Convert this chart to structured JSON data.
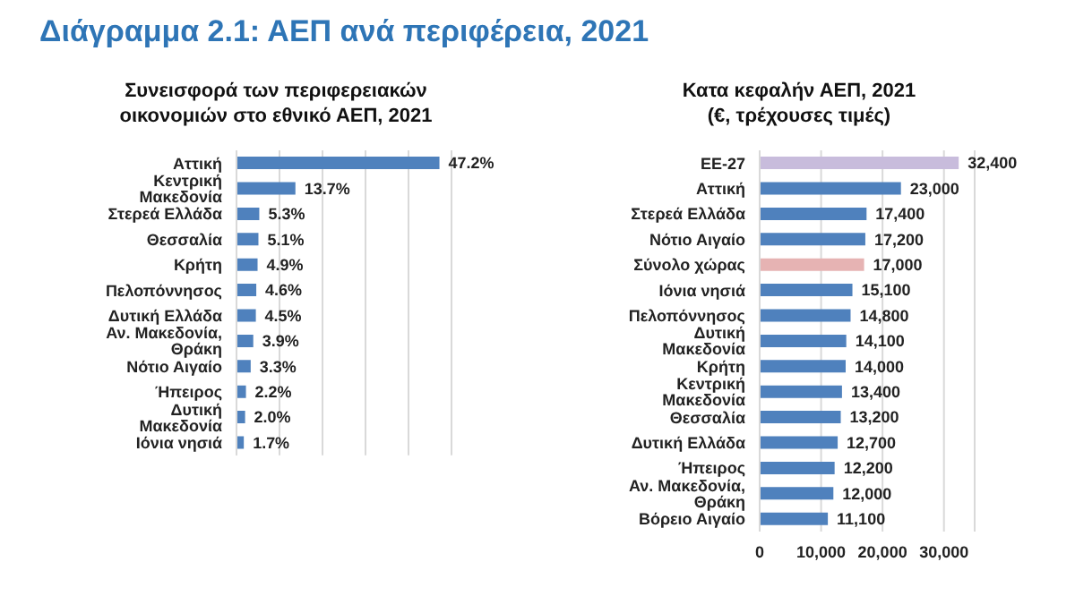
{
  "chart_data": [
    {
      "type": "bar",
      "orientation": "horizontal",
      "title": "Διάγραμμα 2.1: ΑΕΠ ανά περιφέρεια, 2021",
      "subtitle": "Συνεισφορά των περιφερειακών\nοικονομιών στο εθνικό ΑΕΠ, 2021",
      "categories": [
        "Αττική",
        "Κεντρική Μακεδονία",
        "Στερεά Ελλάδα",
        "Θεσσαλία",
        "Κρήτη",
        "Πελοπόννησος",
        "Δυτική Ελλάδα",
        "Αν. Μακεδονία, Θράκη",
        "Νότιο Αιγαίο",
        "Ήπειρος",
        "Δυτική Μακεδονία",
        "Ιόνια νησιά"
      ],
      "values": [
        47.2,
        13.7,
        5.3,
        5.1,
        4.9,
        4.6,
        4.5,
        3.9,
        3.3,
        2.2,
        2.0,
        1.7
      ],
      "value_labels": [
        "47.2%",
        "13.7%",
        "5.3%",
        "5.1%",
        "4.9%",
        "4.6%",
        "4.5%",
        "3.9%",
        "3.3%",
        "2.2%",
        "2.0%",
        "1.7%"
      ],
      "color": "#4f81bd",
      "xlim": [
        0,
        50
      ],
      "xticks": [
        {
          "value": 0,
          "label": null
        },
        {
          "value": 10,
          "label": null
        },
        {
          "value": 20,
          "label": null
        },
        {
          "value": 30,
          "label": null
        },
        {
          "value": 40,
          "label": null
        },
        {
          "value": 50,
          "label": null
        }
      ],
      "grid": "x",
      "tick_labels": "y"
    },
    {
      "type": "bar",
      "orientation": "horizontal",
      "title": "Κατα κεφαλήν ΑΕΠ, 2021\n(€, τρέχουσες τιμές)",
      "categories": [
        "ΕΕ-27",
        "Αττική",
        "Στερεά Ελλάδα",
        "Νότιο Αιγαίο",
        "Σύνολο χώρας",
        "Ιόνια νησιά",
        "Πελοπόννησος",
        "Δυτική Μακεδονία",
        "Κρήτη",
        "Κεντρική Μακεδονία",
        "Θεσσαλία",
        "Δυτική Ελλάδα",
        "Ήπειρος",
        "Αν. Μακεδονία, Θράκη",
        "Βόρειο Αιγαίο"
      ],
      "values": [
        32400,
        23000,
        17400,
        17200,
        17000,
        15100,
        14800,
        14100,
        14000,
        13400,
        13200,
        12700,
        12200,
        12000,
        11100
      ],
      "value_labels": [
        "32,400",
        "23,000",
        "17,400",
        "17,200",
        "17,000",
        "15,100",
        "14,800",
        "14,100",
        "14,000",
        "13,400",
        "13,200",
        "12,700",
        "12,200",
        "12,000",
        "11,100"
      ],
      "colors": [
        "#c8bcdc",
        "#4f81bd",
        "#4f81bd",
        "#4f81bd",
        "#e6b3b3",
        "#4f81bd",
        "#4f81bd",
        "#4f81bd",
        "#4f81bd",
        "#4f81bd",
        "#4f81bd",
        "#4f81bd",
        "#4f81bd",
        "#4f81bd",
        "#4f81bd"
      ],
      "xlim": [
        0,
        35000
      ],
      "xticks": [
        0,
        {
          "value": 10000,
          "label": "10,000"
        },
        {
          "value": 20000,
          "label": "20,000"
        },
        {
          "value": 30000,
          "label": "30,000"
        }
      ],
      "grid": "x"
    }
  ]
}
